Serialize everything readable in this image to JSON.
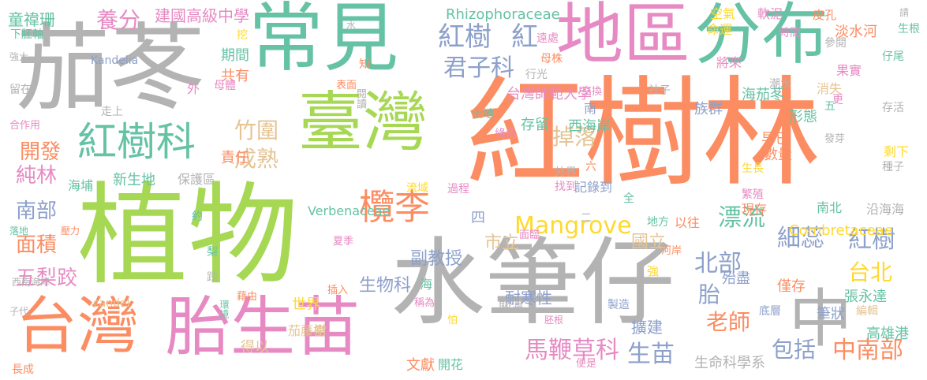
{
  "palette": {
    "orange": "#fc8d62",
    "teal": "#66c2a5",
    "purple": "#8da0cb",
    "pink": "#e78ac3",
    "green": "#a6d854",
    "yellow": "#ffd92f",
    "tan": "#e5c494",
    "gray": "#b3b3b3"
  },
  "words": [
    {
      "text": "紅樹林",
      "color": "orange"
    },
    {
      "text": "植物",
      "color": "green"
    },
    {
      "text": "水筆仔",
      "color": "gray"
    },
    {
      "text": "茄苳",
      "color": "gray"
    },
    {
      "text": "常見",
      "color": "teal"
    },
    {
      "text": "地區",
      "color": "pink"
    },
    {
      "text": "分布",
      "color": "teal"
    },
    {
      "text": "臺灣",
      "color": "green"
    },
    {
      "text": "胎生苗",
      "color": "pink"
    },
    {
      "text": "台灣",
      "color": "orange"
    },
    {
      "text": "中",
      "color": "gray"
    },
    {
      "text": "紅樹科",
      "color": "teal"
    },
    {
      "text": "欖李",
      "color": "orange"
    },
    {
      "text": "紅樹",
      "color": "purple"
    },
    {
      "text": "紅",
      "color": "purple"
    },
    {
      "text": "君子科",
      "color": "purple"
    },
    {
      "text": "Mangrove",
      "color": "yellow"
    },
    {
      "text": "細蕊",
      "color": "purple"
    },
    {
      "text": "紅樹",
      "color": "purple"
    },
    {
      "text": "漂流",
      "color": "teal"
    },
    {
      "text": "北部",
      "color": "purple"
    },
    {
      "text": "生苗",
      "color": "purple"
    },
    {
      "text": "馬鞭草科",
      "color": "pink"
    },
    {
      "text": "台北",
      "color": "yellow"
    },
    {
      "text": "中南部",
      "color": "orange"
    },
    {
      "text": "包括",
      "color": "purple"
    },
    {
      "text": "老師",
      "color": "orange"
    },
    {
      "text": "胎",
      "color": "purple"
    },
    {
      "text": "養分",
      "color": "pink"
    },
    {
      "text": "掉落",
      "color": "tan"
    },
    {
      "text": "成熟",
      "color": "tan"
    },
    {
      "text": "竹圍",
      "color": "tan"
    },
    {
      "text": "南部",
      "color": "purple"
    },
    {
      "text": "純林",
      "color": "pink"
    },
    {
      "text": "面積",
      "color": "orange"
    },
    {
      "text": "五梨跤",
      "color": "pink"
    },
    {
      "text": "開發",
      "color": "orange"
    },
    {
      "text": "生物科",
      "color": "purple"
    },
    {
      "text": "市立",
      "color": "tan"
    },
    {
      "text": "副教授",
      "color": "purple"
    },
    {
      "text": "擴建",
      "color": "purple"
    },
    {
      "text": "耐寒性",
      "color": "purple"
    },
    {
      "text": "國立",
      "color": "tan"
    },
    {
      "text": "童禕珊",
      "color": "teal"
    },
    {
      "text": "建國高級中學",
      "color": "pink"
    },
    {
      "text": "Rhizophoraceae",
      "color": "teal"
    },
    {
      "text": "台灣師範大學",
      "color": "pink"
    },
    {
      "text": "Combretaceae",
      "color": "yellow"
    },
    {
      "text": "Verbenaceae",
      "color": "teal"
    },
    {
      "text": "Kandelia",
      "color": "purple"
    },
    {
      "text": "candel",
      "color": "tan"
    },
    {
      "text": "生命科學系",
      "color": "gray"
    },
    {
      "text": "高雄港",
      "color": "teal"
    },
    {
      "text": "淡水河",
      "color": "orange"
    },
    {
      "text": "張永達",
      "color": "teal"
    },
    {
      "text": "海茄苳",
      "color": "teal"
    },
    {
      "text": "族群",
      "color": "purple"
    },
    {
      "text": "沿海海",
      "color": "gray"
    },
    {
      "text": "殆盡",
      "color": "purple"
    },
    {
      "text": "僅存",
      "color": "orange"
    },
    {
      "text": "筆狀",
      "color": "purple"
    },
    {
      "text": "世界",
      "color": "yellow"
    },
    {
      "text": "茄藤樹",
      "color": "tan"
    },
    {
      "text": "得以",
      "color": "tan"
    },
    {
      "text": "文獻",
      "color": "orange"
    },
    {
      "text": "開花",
      "color": "teal"
    },
    {
      "text": "關渡",
      "color": "gray"
    },
    {
      "text": "西海岸",
      "color": "teal"
    },
    {
      "text": "存留",
      "color": "teal"
    },
    {
      "text": "數量",
      "color": "orange"
    },
    {
      "text": "早已",
      "color": "orange"
    },
    {
      "text": "期間",
      "color": "teal"
    },
    {
      "text": "共有",
      "color": "orange"
    },
    {
      "text": "責任",
      "color": "orange"
    },
    {
      "text": "新生地",
      "color": "teal"
    },
    {
      "text": "保護區",
      "color": "gray"
    },
    {
      "text": "海埔",
      "color": "teal"
    },
    {
      "text": "西南海岸",
      "color": "gray"
    },
    {
      "text": "下胚軸",
      "color": "teal"
    },
    {
      "text": "強大",
      "color": "gray"
    },
    {
      "text": "留在",
      "color": "gray"
    },
    {
      "text": "合作用",
      "color": "pink"
    },
    {
      "text": "走上",
      "color": "gray"
    },
    {
      "text": "長成",
      "color": "orange"
    },
    {
      "text": "子代",
      "color": "gray"
    },
    {
      "text": "落地",
      "color": "teal"
    },
    {
      "text": "壓力",
      "color": "orange"
    },
    {
      "text": "現存",
      "color": "orange"
    },
    {
      "text": "南北",
      "color": "teal"
    },
    {
      "text": "形態",
      "color": "teal"
    },
    {
      "text": "消失",
      "color": "tan"
    },
    {
      "text": "存活",
      "color": "gray"
    },
    {
      "text": "剩下",
      "color": "yellow"
    },
    {
      "text": "種子",
      "color": "gray"
    },
    {
      "text": "發芽",
      "color": "gray"
    },
    {
      "text": "繁殖",
      "color": "pink"
    },
    {
      "text": "生長",
      "color": "yellow"
    },
    {
      "text": "將來",
      "color": "pink"
    },
    {
      "text": "果實",
      "color": "pink"
    },
    {
      "text": "仔尾",
      "color": "teal"
    },
    {
      "text": "生根",
      "color": "teal"
    },
    {
      "text": "皮孔",
      "color": "orange"
    },
    {
      "text": "軟泥",
      "color": "pink"
    },
    {
      "text": "空氣",
      "color": "yellow"
    },
    {
      "text": "命運",
      "color": "yellow"
    },
    {
      "text": "時間",
      "color": "pink"
    },
    {
      "text": "參閱",
      "color": "gray"
    },
    {
      "text": "請",
      "color": "gray"
    },
    {
      "text": "潮水",
      "color": "gray"
    },
    {
      "text": "更",
      "color": "pink"
    },
    {
      "text": "五",
      "color": "teal"
    },
    {
      "text": "社子",
      "color": "gray"
    },
    {
      "text": "交換",
      "color": "pink"
    },
    {
      "text": "遠處",
      "color": "pink"
    },
    {
      "text": "母株",
      "color": "orange"
    },
    {
      "text": "行光",
      "color": "gray"
    },
    {
      "text": "土地",
      "color": "teal"
    },
    {
      "text": "綠色",
      "color": "pink"
    },
    {
      "text": "外界",
      "color": "gray"
    },
    {
      "text": "找到",
      "color": "pink"
    },
    {
      "text": "記錄到",
      "color": "purple"
    },
    {
      "text": "過程",
      "color": "pink"
    },
    {
      "text": "流域",
      "color": "yellow"
    },
    {
      "text": "地方",
      "color": "teal"
    },
    {
      "text": "以往",
      "color": "orange"
    },
    {
      "text": "全",
      "color": "teal"
    },
    {
      "text": "六",
      "color": "orange"
    },
    {
      "text": "南",
      "color": "purple"
    },
    {
      "text": "二",
      "color": "gray"
    },
    {
      "text": "四",
      "color": "purple"
    },
    {
      "text": "河岸",
      "color": "orange"
    },
    {
      "text": "強",
      "color": "yellow"
    },
    {
      "text": "製造",
      "color": "purple"
    },
    {
      "text": "胚根",
      "color": "pink"
    },
    {
      "text": "稱為",
      "color": "pink"
    },
    {
      "text": "怕",
      "color": "yellow"
    },
    {
      "text": "便是",
      "color": "pink"
    },
    {
      "text": "海",
      "color": "teal"
    },
    {
      "text": "插入",
      "color": "orange"
    },
    {
      "text": "夏季",
      "color": "pink"
    },
    {
      "text": "面臨",
      "color": "pink"
    },
    {
      "text": "藉由",
      "color": "orange"
    },
    {
      "text": "環境",
      "color": "teal"
    },
    {
      "text": "跤",
      "color": "gray"
    },
    {
      "text": "梨",
      "color": "teal"
    },
    {
      "text": "約",
      "color": "teal"
    },
    {
      "text": "常",
      "color": "tan"
    },
    {
      "text": "閱讀",
      "color": "gray"
    },
    {
      "text": "表面",
      "color": "orange"
    },
    {
      "text": "母體",
      "color": "pink"
    },
    {
      "text": "外",
      "color": "pink"
    },
    {
      "text": "知",
      "color": "orange"
    },
    {
      "text": "挖",
      "color": "yellow"
    },
    {
      "text": "水",
      "color": "gray"
    },
    {
      "text": "底層",
      "color": "purple"
    },
    {
      "text": "編輯",
      "color": "tan"
    }
  ]
}
